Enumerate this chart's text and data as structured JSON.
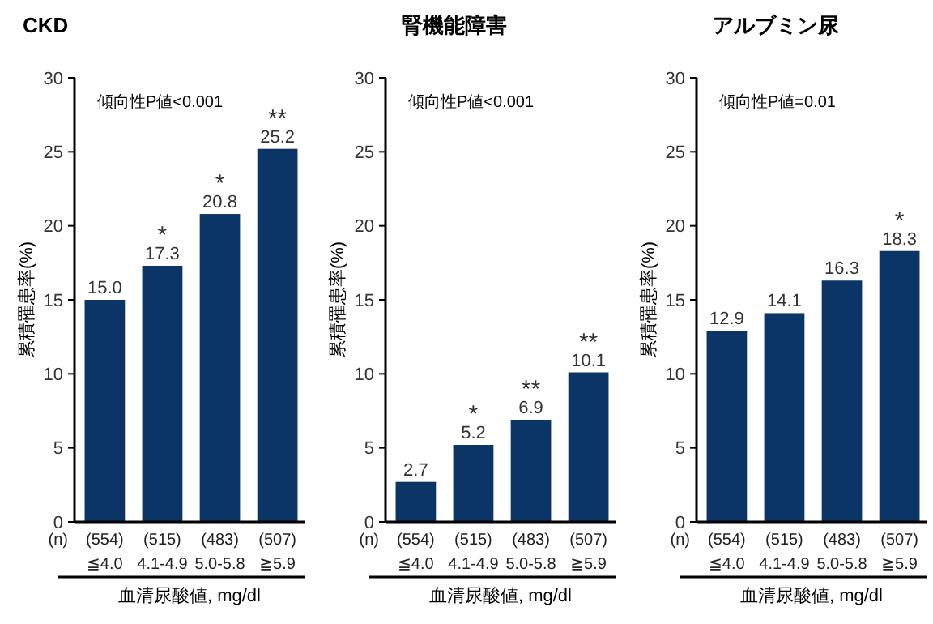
{
  "chart_data": [
    {
      "type": "bar",
      "title": "CKD",
      "ylabel": "累積罹患率(%)",
      "xlabel": "血清尿酸値, mg/dl",
      "color": "#0b3566",
      "categories": [
        "(554)\n≦4.0",
        "(515)\n4.1-4.9",
        "(483)\n5.0-5.8",
        "(507)\n≧5.9"
      ],
      "values": [
        15.0,
        17.3,
        20.8,
        25.2
      ],
      "value_labels": [
        "15.0",
        "17.3",
        "20.8",
        "25.2"
      ],
      "ylim": [
        0,
        30
      ],
      "yticks": [
        0,
        5,
        10,
        15,
        20,
        25,
        30
      ],
      "annotations": [
        "傾向性P値<0.001",
        "(n)",
        {
          "text": "*",
          "x": "(515)\n4.1-4.9",
          "y": 17.3
        },
        {
          "text": "*",
          "x": "(483)\n5.0-5.8",
          "y": 20.8
        },
        {
          "text": "**",
          "x": "(507)\n≧5.9",
          "y": 25.2
        }
      ]
    },
    {
      "type": "bar",
      "title": "腎機能障害",
      "ylabel": "累積罹患率(%)",
      "xlabel": "血清尿酸値, mg/dl",
      "color": "#0b3566",
      "categories": [
        "(554)\n≦4.0",
        "(515)\n4.1-4.9",
        "(483)\n5.0-5.8",
        "(507)\n≧5.9"
      ],
      "values": [
        2.7,
        5.2,
        6.9,
        10.1
      ],
      "value_labels": [
        "2.7",
        "5.2",
        "6.9",
        "10.1"
      ],
      "ylim": [
        0,
        30
      ],
      "yticks": [
        0,
        5,
        10,
        15,
        20,
        25,
        30
      ],
      "annotations": [
        "傾向性P値<0.001",
        "(n)",
        {
          "text": "*",
          "x": "(515)\n4.1-4.9",
          "y": 5.2
        },
        {
          "text": "**",
          "x": "(483)\n5.0-5.8",
          "y": 6.9
        },
        {
          "text": "**",
          "x": "(507)\n≧5.9",
          "y": 10.1
        }
      ]
    },
    {
      "type": "bar",
      "title": "アルブミン尿",
      "ylabel": "累積罹患率(%)",
      "xlabel": "血清尿酸値, mg/dl",
      "color": "#0b3566",
      "categories": [
        "(554)\n≦4.0",
        "(515)\n4.1-4.9",
        "(483)\n5.0-5.8",
        "(507)\n≧5.9"
      ],
      "values": [
        12.9,
        14.1,
        16.3,
        18.3
      ],
      "value_labels": [
        "12.9",
        "14.1",
        "16.3",
        "18.3"
      ],
      "ylim": [
        0,
        30
      ],
      "yticks": [
        0,
        5,
        10,
        15,
        20,
        25,
        30
      ],
      "annotations": [
        "傾向性P値=0.01",
        "(n)",
        {
          "text": "*",
          "x": "(507)\n≧5.9",
          "y": 18.3
        }
      ]
    }
  ]
}
